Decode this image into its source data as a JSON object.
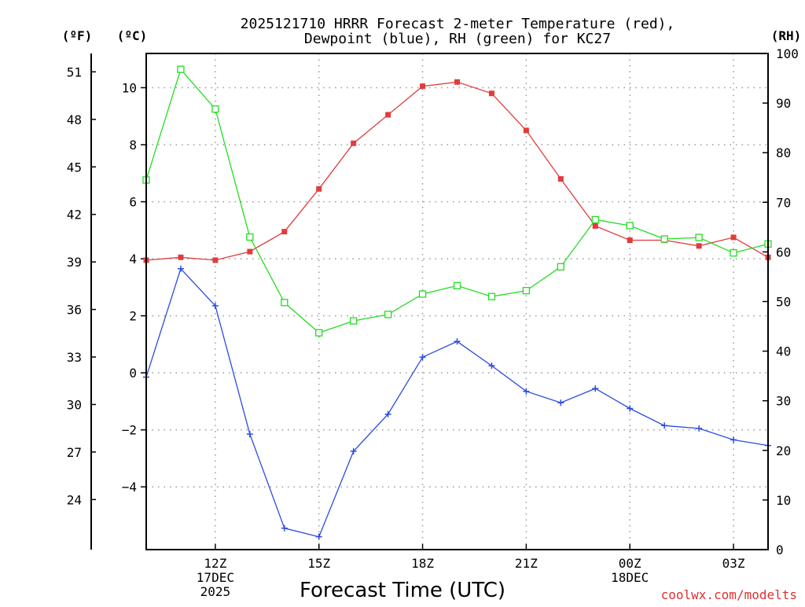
{
  "chart_data": {
    "type": "line",
    "title_line1": "2025121710 HRRR Forecast 2-meter Temperature (red),",
    "title_line2": "Dewpoint (blue), RH (green) for KC27",
    "xlabel": "Forecast Time (UTC)",
    "credit": "coolwx.com/modelts",
    "units": {
      "fahrenheit": "(ºF)",
      "celsius": "(ºC)",
      "rh": "(RH)"
    },
    "hours": [
      10,
      11,
      12,
      13,
      14,
      15,
      16,
      17,
      18,
      19,
      20,
      21,
      22,
      23,
      24,
      25,
      26,
      27,
      28
    ],
    "x_ticks": [
      {
        "hour": 12,
        "lines": [
          "12Z",
          "17DEC",
          "2025"
        ]
      },
      {
        "hour": 15,
        "lines": [
          "15Z"
        ]
      },
      {
        "hour": 18,
        "lines": [
          "18Z"
        ]
      },
      {
        "hour": 21,
        "lines": [
          "21Z"
        ]
      },
      {
        "hour": 24,
        "lines": [
          "00Z",
          "18DEC"
        ]
      },
      {
        "hour": 27,
        "lines": [
          "03Z"
        ]
      }
    ],
    "x_range": [
      10,
      28
    ],
    "celsius_range": [
      -6.2,
      11.2
    ],
    "celsius_ticks": [
      "10",
      "8",
      "6",
      "4",
      "2",
      "0",
      "−2",
      "−4"
    ],
    "celsius_tick_values": [
      10,
      8,
      6,
      4,
      2,
      0,
      -2,
      -4
    ],
    "fahrenheit_ticks": [
      "51",
      "48",
      "45",
      "42",
      "39",
      "36",
      "33",
      "30",
      "27",
      "24"
    ],
    "fahrenheit_tick_values": [
      51,
      48,
      45,
      42,
      39,
      36,
      33,
      30,
      27,
      24
    ],
    "rh_range": [
      0,
      100
    ],
    "rh_ticks": [
      "100",
      "90",
      "80",
      "70",
      "60",
      "50",
      "40",
      "30",
      "20",
      "10",
      "0"
    ],
    "rh_tick_values": [
      100,
      90,
      80,
      70,
      60,
      50,
      40,
      30,
      20,
      10,
      0
    ],
    "grid": true,
    "series": [
      {
        "name": "Temperature",
        "color": "#e03c3c",
        "marker": "filled-square",
        "axis": "celsius",
        "values": [
          3.95,
          4.05,
          3.95,
          4.25,
          4.95,
          6.45,
          8.05,
          9.05,
          10.05,
          10.2,
          9.8,
          8.5,
          6.8,
          5.15,
          4.65,
          4.65,
          4.45,
          4.75,
          4.05
        ]
      },
      {
        "name": "Dewpoint",
        "color": "#2b4be0",
        "marker": "plus",
        "axis": "celsius",
        "values": [
          -0.15,
          3.65,
          2.35,
          -2.15,
          -5.45,
          -5.75,
          -2.75,
          -1.45,
          0.55,
          1.1,
          0.25,
          -0.65,
          -1.05,
          -0.55,
          -1.25,
          -1.85,
          -1.95,
          -2.35,
          -2.55
        ]
      },
      {
        "name": "RH",
        "color": "#22dd22",
        "marker": "open-square",
        "axis": "rh",
        "values": [
          74.5,
          96.8,
          88.8,
          63.0,
          49.8,
          43.7,
          46.1,
          47.4,
          51.5,
          53.2,
          51.0,
          52.2,
          57.0,
          66.5,
          65.3,
          62.6,
          62.9,
          59.8,
          61.6
        ]
      }
    ]
  }
}
